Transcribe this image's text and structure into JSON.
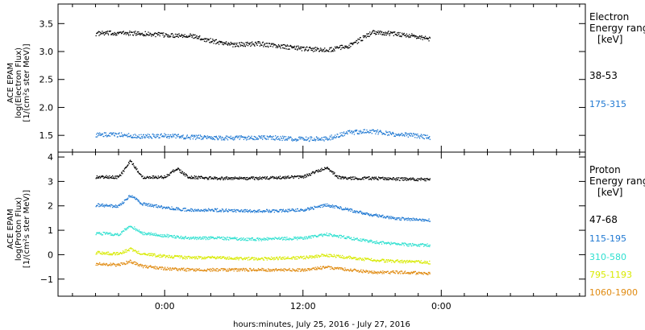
{
  "chart_data": [
    {
      "type": "scatter",
      "ylabel_lines": [
        "ACE EPAM",
        "log(Electron Flux)",
        "[1/(cm²s ster MeV)]"
      ],
      "ylim": [
        1.2,
        3.85
      ],
      "y_ticks": [
        1.5,
        2.0,
        2.5,
        3.0,
        3.5
      ],
      "y_tick_labels": [
        "1.5",
        "2.0",
        "2.5",
        "3.0",
        "3.5"
      ],
      "legend_title": [
        "Electron",
        "Energy range",
        "[keV]"
      ],
      "series": [
        {
          "name": "38-53",
          "color": "#000000",
          "x": [
            -12,
            -8,
            -4,
            0,
            4,
            8,
            12,
            16,
            20,
            24,
            28,
            32,
            36,
            40,
            44,
            46
          ],
          "y": [
            3.33,
            3.34,
            3.33,
            3.3,
            3.3,
            3.2,
            3.13,
            3.15,
            3.1,
            3.06,
            3.03,
            3.11,
            3.35,
            3.33,
            3.27,
            3.23
          ]
        },
        {
          "name": "175-315",
          "color": "#1f78d2",
          "x": [
            -12,
            -8,
            -4,
            0,
            4,
            8,
            12,
            16,
            20,
            24,
            28,
            32,
            36,
            40,
            44,
            46
          ],
          "y": [
            1.52,
            1.52,
            1.49,
            1.5,
            1.48,
            1.47,
            1.46,
            1.47,
            1.46,
            1.44,
            1.45,
            1.56,
            1.58,
            1.53,
            1.5,
            1.46
          ]
        }
      ]
    },
    {
      "type": "scatter",
      "ylabel_lines": [
        "ACE EPAM",
        "log(Proton Flux)",
        "[1/(cm²s ster MeV)]"
      ],
      "ylim": [
        -1.7,
        4.2
      ],
      "y_ticks": [
        -1,
        0,
        1,
        2,
        3,
        4
      ],
      "y_tick_labels": [
        "−1",
        "0",
        "1",
        "2",
        "3",
        "4"
      ],
      "legend_title": [
        "Proton",
        "Energy range",
        "[keV]"
      ],
      "series": [
        {
          "name": "47-68",
          "color": "#000000",
          "x": [
            -12,
            -8,
            -6,
            -4,
            0,
            2,
            4,
            8,
            16,
            24,
            28,
            30,
            32,
            36,
            40,
            46
          ],
          "y": [
            3.2,
            3.2,
            3.85,
            3.2,
            3.2,
            3.55,
            3.2,
            3.15,
            3.15,
            3.2,
            3.6,
            3.2,
            3.15,
            3.15,
            3.12,
            3.1
          ]
        },
        {
          "name": "115-195",
          "color": "#1f78d2",
          "x": [
            -12,
            -8,
            -6,
            -4,
            0,
            4,
            8,
            16,
            24,
            28,
            32,
            36,
            40,
            46
          ],
          "y": [
            2.05,
            2.0,
            2.45,
            2.1,
            1.95,
            1.85,
            1.85,
            1.8,
            1.85,
            2.05,
            1.85,
            1.65,
            1.5,
            1.42
          ]
        },
        {
          "name": "310-580",
          "color": "#2fe0d0",
          "x": [
            -12,
            -8,
            -6,
            -4,
            0,
            4,
            8,
            16,
            24,
            28,
            32,
            36,
            40,
            46
          ],
          "y": [
            0.9,
            0.85,
            1.2,
            0.9,
            0.8,
            0.7,
            0.7,
            0.65,
            0.7,
            0.85,
            0.7,
            0.55,
            0.45,
            0.4
          ]
        },
        {
          "name": "795-1193",
          "color": "#d8ea00",
          "x": [
            -12,
            -8,
            -6,
            -4,
            0,
            4,
            8,
            16,
            24,
            28,
            32,
            36,
            40,
            46
          ],
          "y": [
            0.1,
            0.05,
            0.25,
            0.05,
            -0.05,
            -0.1,
            -0.1,
            -0.15,
            -0.1,
            0.0,
            -0.1,
            -0.2,
            -0.25,
            -0.3
          ]
        },
        {
          "name": "1060-1900",
          "color": "#e08a10",
          "x": [
            -12,
            -8,
            -6,
            -4,
            0,
            4,
            8,
            16,
            24,
            28,
            32,
            36,
            40,
            46
          ],
          "y": [
            -0.35,
            -0.4,
            -0.25,
            -0.45,
            -0.55,
            -0.6,
            -0.6,
            -0.6,
            -0.6,
            -0.5,
            -0.6,
            -0.7,
            -0.7,
            -0.75
          ]
        }
      ]
    }
  ],
  "x_axis": {
    "xlim": [
      -18.5,
      73
    ],
    "ticks": [
      0,
      24,
      48
    ],
    "tick_labels": [
      "0:00",
      "12:00",
      "0:00"
    ],
    "minor_ticks": [
      -16,
      -12,
      -8,
      -4,
      4,
      8,
      12,
      16,
      20,
      28,
      32,
      36,
      40,
      44,
      52,
      56,
      60,
      64,
      68,
      72
    ],
    "xlabel": "hours:minutes, July 25, 2016 - July 27, 2016"
  },
  "grid": false
}
